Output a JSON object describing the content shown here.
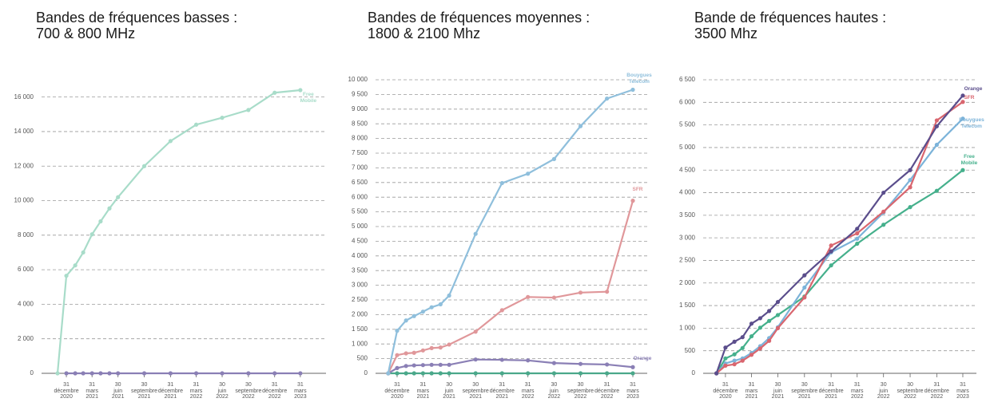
{
  "chart_data": [
    {
      "type": "line",
      "title": "Bandes de fréquences basses :",
      "subtitle": "700 & 800 MHz",
      "x": [
        "2020-11-30",
        "2020-12-31",
        "2021-01-31",
        "2021-02-28",
        "2021-03-31",
        "2021-04-30",
        "2021-05-31",
        "2021-06-30",
        "2021-09-30",
        "2021-12-31",
        "2022-03-31",
        "2022-06-30",
        "2022-09-30",
        "2022-12-31",
        "2023-03-31"
      ],
      "xlim": [
        "2020-10-05",
        "2023-06-29"
      ],
      "xticks": [
        {
          "value": "2020-12-31",
          "label": "31 décembre 2020"
        },
        {
          "value": "2021-03-31",
          "label": "31 mars 2021"
        },
        {
          "value": "2021-06-30",
          "label": "30 juin 2021"
        },
        {
          "value": "2021-09-30",
          "label": "30 septembre 2021"
        },
        {
          "value": "2021-12-31",
          "label": "31 décembre 2021"
        },
        {
          "value": "2022-03-31",
          "label": "31 mars 2022"
        },
        {
          "value": "2022-06-30",
          "label": "30 juin 2022"
        },
        {
          "value": "2022-09-30",
          "label": "30 septembre 2022"
        },
        {
          "value": "2022-12-31",
          "label": "31 décembre 2022"
        },
        {
          "value": "2023-03-31",
          "label": "31 mars 2023"
        }
      ],
      "ylim": [
        0,
        17000
      ],
      "yticks": [
        0,
        {
          "value": 2000,
          "label": "2 000"
        },
        {
          "value": 4000,
          "label": "4 000"
        },
        {
          "value": 6000,
          "label": "6 000"
        },
        {
          "value": 8000,
          "label": "8 000"
        },
        {
          "value": 10000,
          "label": "10 000"
        },
        {
          "value": 12000,
          "label": "12 000"
        },
        {
          "value": 14000,
          "label": "14 000"
        },
        {
          "value": 16000,
          "label": "16 000"
        }
      ],
      "grid": true,
      "series": [
        {
          "color": "#8a7fb5",
          "values": [
            null,
            0,
            0,
            0,
            0,
            0,
            0,
            0,
            0,
            0,
            0,
            0,
            0,
            0,
            0
          ]
        },
        {
          "name": "Free Mobile",
          "color": "#a8dcc9",
          "values": [
            0,
            5650,
            6250,
            7000,
            8050,
            8800,
            9550,
            10200,
            12000,
            13450,
            14400,
            14800,
            15250,
            16250,
            16400
          ]
        }
      ]
    },
    {
      "type": "line",
      "title": "Bandes de fréquences moyennes :",
      "subtitle": "1800 & 2100 Mhz",
      "x": [
        "2020-11-30",
        "2020-12-31",
        "2021-01-31",
        "2021-02-28",
        "2021-03-31",
        "2021-04-30",
        "2021-05-31",
        "2021-06-30",
        "2021-09-30",
        "2021-12-31",
        "2022-03-31",
        "2022-06-30",
        "2022-09-30",
        "2022-12-31",
        "2023-03-31"
      ],
      "xlim": [
        "2020-10-17",
        "2023-05-20"
      ],
      "xticks": [
        {
          "value": "2020-12-31",
          "label": "31 décembre 2020"
        },
        {
          "value": "2021-03-31",
          "label": "31 mars 2021"
        },
        {
          "value": "2021-06-30",
          "label": "30 juin 2021"
        },
        {
          "value": "2021-09-30",
          "label": "30 septembre 2021"
        },
        {
          "value": "2021-12-31",
          "label": "31 décembre 2021"
        },
        {
          "value": "2022-03-31",
          "label": "31 mars 2022"
        },
        {
          "value": "2022-06-30",
          "label": "30 juin 2022"
        },
        {
          "value": "2022-09-30",
          "label": "30 septembre 2022"
        },
        {
          "value": "2022-12-31",
          "label": "31 décembre 2022"
        },
        {
          "value": "2023-03-31",
          "label": "31 mars 2023"
        }
      ],
      "ylim": [
        0,
        10000
      ],
      "yticks": [
        0,
        500,
        {
          "value": 1000,
          "label": "1 000"
        },
        {
          "value": 1500,
          "label": "1 500"
        },
        {
          "value": 2000,
          "label": "2 000"
        },
        {
          "value": 2500,
          "label": "2 500"
        },
        {
          "value": 3000,
          "label": "3 000"
        },
        {
          "value": 3500,
          "label": "3 500"
        },
        {
          "value": 4000,
          "label": "4 000"
        },
        {
          "value": 4500,
          "label": "4 500"
        },
        {
          "value": 5000,
          "label": "5 000"
        },
        {
          "value": 5500,
          "label": "5 500"
        },
        {
          "value": 6000,
          "label": "6 000"
        },
        {
          "value": 6500,
          "label": "6 500"
        },
        {
          "value": 7000,
          "label": "7 000"
        },
        {
          "value": 7500,
          "label": "7 500"
        },
        {
          "value": 8000,
          "label": "8 000"
        },
        {
          "value": 8500,
          "label": "8 500"
        },
        {
          "value": 9000,
          "label": "9 000"
        },
        {
          "value": 9500,
          "label": "9 500"
        },
        {
          "value": 10000,
          "label": "10 000"
        }
      ],
      "grid": true,
      "series": [
        {
          "color": "#4aa88a",
          "values": [
            0,
            0,
            0,
            0,
            0,
            0,
            0,
            0,
            0,
            0,
            0,
            0,
            0,
            0,
            0
          ]
        },
        {
          "name": "Orange",
          "color": "#8a7fb5",
          "values": [
            0,
            180,
            250,
            270,
            280,
            290,
            290,
            290,
            470,
            460,
            440,
            350,
            320,
            300,
            210
          ]
        },
        {
          "name": "SFR",
          "color": "#e0979a",
          "values": [
            0,
            620,
            680,
            700,
            780,
            860,
            880,
            980,
            1420,
            2150,
            2600,
            2580,
            2750,
            2780,
            5880
          ]
        },
        {
          "name": "Bouygues Telecom",
          "color": "#8fbfdc",
          "values": [
            0,
            1450,
            1800,
            1950,
            2100,
            2250,
            2350,
            2650,
            4750,
            6480,
            6800,
            7300,
            8420,
            9360,
            9660
          ]
        }
      ]
    },
    {
      "type": "line",
      "title": "Bande de fréquences hautes :",
      "subtitle": "3500 Mhz",
      "x": [
        "2020-11-30",
        "2020-12-31",
        "2021-01-31",
        "2021-02-28",
        "2021-03-31",
        "2021-04-30",
        "2021-05-31",
        "2021-06-30",
        "2021-09-30",
        "2021-12-31",
        "2022-03-31",
        "2022-06-30",
        "2022-09-30",
        "2022-12-31",
        "2023-03-31"
      ],
      "xlim": [
        "2020-10-15",
        "2023-05-17"
      ],
      "xticks": [
        {
          "value": "2020-12-31",
          "label": "31 décembre 2020"
        },
        {
          "value": "2021-03-31",
          "label": "31 mars 2021"
        },
        {
          "value": "2021-06-30",
          "label": "30 juin 2021"
        },
        {
          "value": "2021-09-30",
          "label": "30 septembre 2021"
        },
        {
          "value": "2021-12-31",
          "label": "31 décembre 2021"
        },
        {
          "value": "2022-03-31",
          "label": "31 mars 2022"
        },
        {
          "value": "2022-06-30",
          "label": "30 juin 2022"
        },
        {
          "value": "2022-09-30",
          "label": "30 septembre 2022"
        },
        {
          "value": "2022-12-31",
          "label": "31 décembre 2022"
        },
        {
          "value": "2023-03-31",
          "label": "31 mars 2023"
        }
      ],
      "ylim": [
        0,
        6500
      ],
      "yticks": [
        0,
        500,
        {
          "value": 1000,
          "label": "1 000"
        },
        {
          "value": 1500,
          "label": "1 500"
        },
        {
          "value": 2000,
          "label": "2 000"
        },
        {
          "value": 2500,
          "label": "2 500"
        },
        {
          "value": 3000,
          "label": "3 000"
        },
        {
          "value": 3500,
          "label": "3 500"
        },
        {
          "value": 4000,
          "label": "4 000"
        },
        {
          "value": 4500,
          "label": "4 500"
        },
        {
          "value": 5000,
          "label": "5 000"
        },
        {
          "value": 5500,
          "label": "5 500"
        },
        {
          "value": 6000,
          "label": "6 000"
        },
        {
          "value": 6500,
          "label": "6 500"
        }
      ],
      "grid": true,
      "series": [
        {
          "name": "Free Mobile",
          "color": "#45b08c",
          "values": [
            0,
            330,
            420,
            560,
            820,
            1010,
            1160,
            1290,
            1700,
            2390,
            2870,
            3290,
            3680,
            4040,
            4500
          ]
        },
        {
          "name": "Bouygues Telecom",
          "color": "#7cb3d9",
          "values": [
            0,
            220,
            280,
            330,
            450,
            600,
            780,
            1020,
            1900,
            2680,
            2980,
            3560,
            4280,
            5060,
            5640
          ]
        },
        {
          "name": "SFR",
          "color": "#d9666f",
          "values": [
            0,
            170,
            200,
            280,
            410,
            550,
            720,
            1000,
            1680,
            2830,
            3100,
            3580,
            4120,
            5600,
            6010
          ]
        },
        {
          "name": "Orange",
          "color": "#5b4e8c",
          "values": [
            0,
            570,
            700,
            800,
            1100,
            1220,
            1380,
            1580,
            2170,
            2700,
            3200,
            4000,
            4500,
            5470,
            6150
          ]
        }
      ]
    }
  ]
}
